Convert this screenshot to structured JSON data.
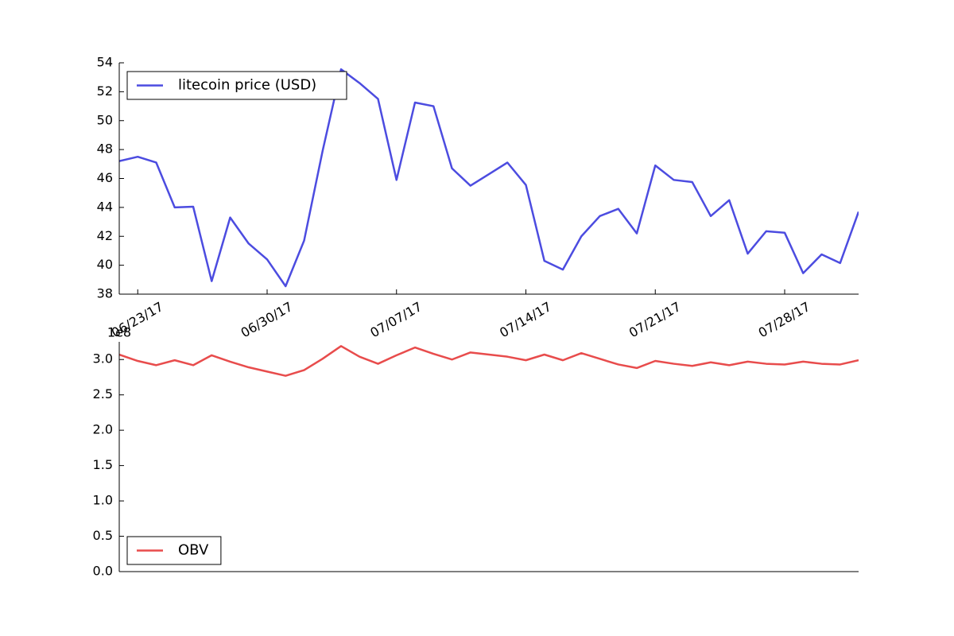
{
  "chart_data": [
    {
      "type": "line",
      "x": [
        "2017-06-22",
        "2017-06-23",
        "2017-06-24",
        "2017-06-25",
        "2017-06-26",
        "2017-06-27",
        "2017-06-28",
        "2017-06-29",
        "2017-06-30",
        "2017-07-01",
        "2017-07-02",
        "2017-07-03",
        "2017-07-04",
        "2017-07-05",
        "2017-07-06",
        "2017-07-07",
        "2017-07-08",
        "2017-07-09",
        "2017-07-10",
        "2017-07-11",
        "2017-07-12",
        "2017-07-13",
        "2017-07-14",
        "2017-07-15",
        "2017-07-16",
        "2017-07-17",
        "2017-07-18",
        "2017-07-19",
        "2017-07-20",
        "2017-07-21",
        "2017-07-22",
        "2017-07-23",
        "2017-07-24",
        "2017-07-25",
        "2017-07-26",
        "2017-07-27",
        "2017-07-28",
        "2017-07-29",
        "2017-07-30",
        "2017-07-31",
        "2017-08-01"
      ],
      "series": [
        {
          "name": "litecoin price (USD)",
          "color": "#4c4ce0",
          "values": [
            47.2,
            47.5,
            47.1,
            44.0,
            44.05,
            38.9,
            43.3,
            41.5,
            40.4,
            38.55,
            41.7,
            47.9,
            53.55,
            52.6,
            51.5,
            45.9,
            51.25,
            51.0,
            46.7,
            45.5,
            46.3,
            47.1,
            45.55,
            40.3,
            39.7,
            42.0,
            43.4,
            43.9,
            42.2,
            46.9,
            45.9,
            45.75,
            43.4,
            44.5,
            40.8,
            42.35,
            42.25,
            39.45,
            40.75,
            40.15,
            43.7
          ]
        }
      ],
      "xlim": [
        "2017-06-22",
        "2017-08-01"
      ],
      "xticks": [
        {
          "value": "2017-06-23",
          "label": "06/23/17"
        },
        {
          "value": "2017-06-30",
          "label": "06/30/17"
        },
        {
          "value": "2017-07-07",
          "label": "07/07/17"
        },
        {
          "value": "2017-07-14",
          "label": "07/14/17"
        },
        {
          "value": "2017-07-21",
          "label": "07/21/17"
        },
        {
          "value": "2017-07-28",
          "label": "07/28/17"
        }
      ],
      "ylim": [
        38,
        54
      ],
      "yticks": [
        38,
        40,
        42,
        44,
        46,
        48,
        50,
        52,
        54
      ],
      "legend": "upper left"
    },
    {
      "type": "line",
      "x": [
        "2017-06-22",
        "2017-06-23",
        "2017-06-24",
        "2017-06-25",
        "2017-06-26",
        "2017-06-27",
        "2017-06-28",
        "2017-06-29",
        "2017-06-30",
        "2017-07-01",
        "2017-07-02",
        "2017-07-03",
        "2017-07-04",
        "2017-07-05",
        "2017-07-06",
        "2017-07-07",
        "2017-07-08",
        "2017-07-09",
        "2017-07-10",
        "2017-07-11",
        "2017-07-12",
        "2017-07-13",
        "2017-07-14",
        "2017-07-15",
        "2017-07-16",
        "2017-07-17",
        "2017-07-18",
        "2017-07-19",
        "2017-07-20",
        "2017-07-21",
        "2017-07-22",
        "2017-07-23",
        "2017-07-24",
        "2017-07-25",
        "2017-07-26",
        "2017-07-27",
        "2017-07-28",
        "2017-07-29",
        "2017-07-30",
        "2017-07-31",
        "2017-08-01"
      ],
      "series": [
        {
          "name": "OBV",
          "color": "#e84c4c",
          "values": [
            3.07,
            2.98,
            2.92,
            2.99,
            2.92,
            3.06,
            2.97,
            2.89,
            2.83,
            2.77,
            2.85,
            3.01,
            3.19,
            3.04,
            2.94,
            3.06,
            3.17,
            3.08,
            3.0,
            3.1,
            3.07,
            3.04,
            2.99,
            3.07,
            2.99,
            3.09,
            3.01,
            2.93,
            2.88,
            2.98,
            2.94,
            2.91,
            2.96,
            2.92,
            2.97,
            2.94,
            2.93,
            2.97,
            2.94,
            2.93,
            2.99
          ]
        }
      ],
      "xlim": [
        "2017-06-22",
        "2017-08-01"
      ],
      "ylim": [
        0,
        3.25
      ],
      "yticks": [
        {
          "value": 0,
          "label": "0.0"
        },
        {
          "value": 0.5,
          "label": "0.5"
        },
        {
          "value": 1,
          "label": "1.0"
        },
        {
          "value": 1.5,
          "label": "1.5"
        },
        {
          "value": 2,
          "label": "2.0"
        },
        {
          "value": 2.5,
          "label": "2.5"
        },
        {
          "value": 3,
          "label": "3.0"
        }
      ],
      "y_offset_label": "1e8",
      "legend": "lower left"
    }
  ]
}
